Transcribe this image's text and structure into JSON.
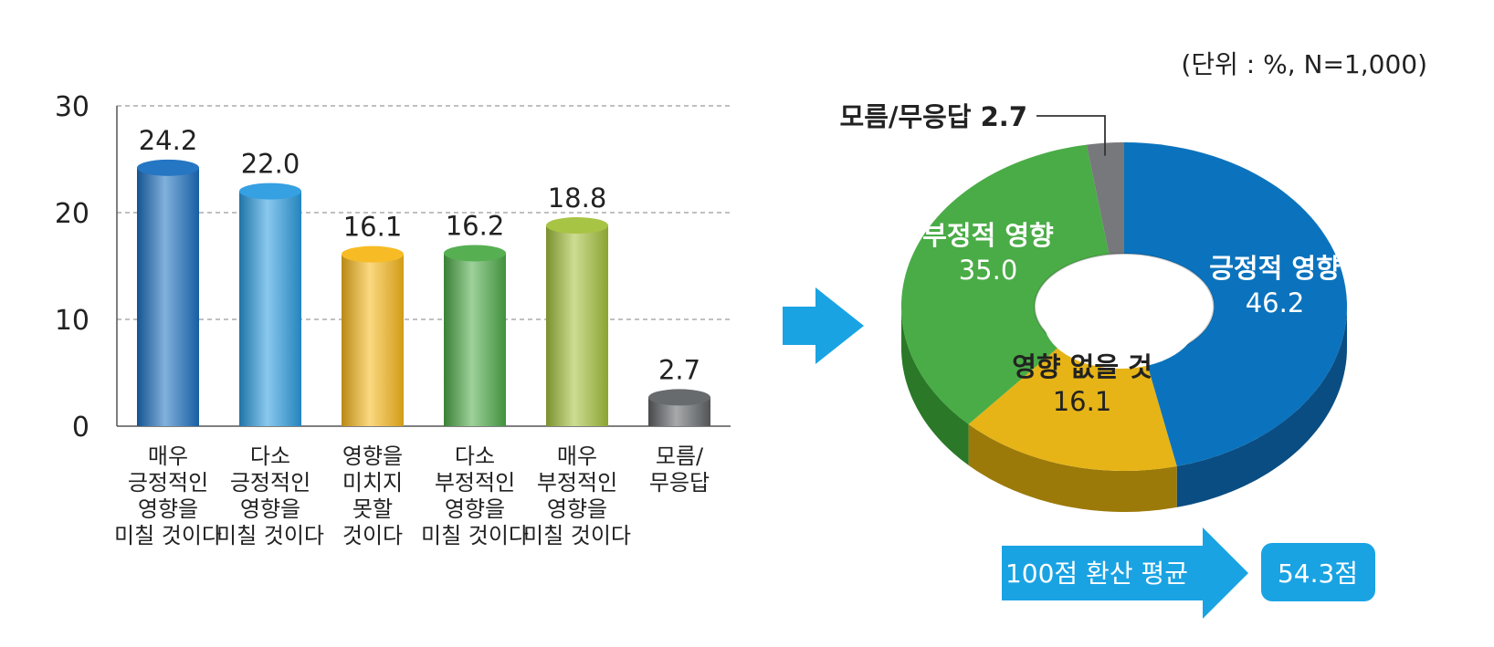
{
  "unit_note": "(단위 : %, N=1,000)",
  "chart_data": [
    {
      "type": "bar",
      "categories": [
        "매우\n긍정적인\n영향을\n미칠 것이다",
        "다소\n긍정적인\n영향을\n미칠 것이다",
        "영향을\n미치지\n못할\n것이다",
        "다소\n부정적인\n영향을\n미칠 것이다",
        "매우\n부정적인\n영향을\n미칠 것이다",
        "모름/\n무응답"
      ],
      "values": [
        24.2,
        22.0,
        16.1,
        16.2,
        18.8,
        2.7
      ],
      "value_labels": [
        "24.2",
        "22.0",
        "16.1",
        "16.2",
        "18.8",
        "2.7"
      ],
      "colors": [
        "#1a6fc0",
        "#2a9be0",
        "#f7b81a",
        "#4dab48",
        "#a3c13a",
        "#5f6366"
      ],
      "ylim": [
        0,
        30
      ],
      "yticks": [
        "0",
        "10",
        "20",
        "30"
      ],
      "grid": true
    },
    {
      "type": "pie",
      "style": "3d-donut",
      "labels": [
        "긍정적 영향",
        "영향 없을 것",
        "부정적 영향",
        "모름/무응답"
      ],
      "values": [
        46.2,
        16.1,
        35.0,
        2.7
      ],
      "value_labels": [
        "46.2",
        "16.1",
        "35.0",
        "2.7"
      ],
      "colors": [
        "#0b73bd",
        "#e6b417",
        "#4aac46",
        "#76787b"
      ],
      "side_colors": [
        "#0a4d82",
        "#9c7a0a",
        "#2a7828",
        "#505256"
      ]
    }
  ],
  "average": {
    "label": "100점 환산 평균",
    "value": "54.3점"
  },
  "arrow_color": "#1aa3e3"
}
